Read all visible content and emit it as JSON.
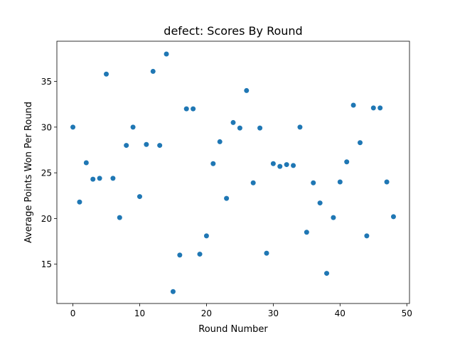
{
  "chart_data": {
    "type": "scatter",
    "title": "defect: Scores By Round",
    "xlabel": "Round Number",
    "ylabel": "Average Points Won Per Round",
    "xlim": [
      -2.4,
      50.4
    ],
    "ylim": [
      10.7,
      39.4
    ],
    "xticks": [
      0,
      10,
      20,
      30,
      40,
      50
    ],
    "yticks": [
      15,
      20,
      25,
      30,
      35
    ],
    "x_tick_labels": [
      "0",
      "10",
      "20",
      "30",
      "40",
      "50"
    ],
    "y_tick_labels": [
      "15",
      "20",
      "25",
      "30",
      "35"
    ],
    "grid": false,
    "color": "#1f77b4",
    "series": [
      {
        "x": [
          0,
          1,
          2,
          3,
          4,
          5,
          6,
          7,
          8,
          9,
          10,
          11,
          12,
          13,
          14,
          15,
          16,
          17,
          18,
          19,
          20,
          21,
          22,
          23,
          24,
          25,
          26,
          27,
          28,
          29,
          30,
          31,
          32,
          33,
          34,
          35,
          36,
          37,
          38,
          39,
          40,
          41,
          42,
          43,
          44,
          45,
          46,
          47,
          48
        ],
        "y": [
          30.0,
          21.8,
          26.1,
          24.3,
          24.4,
          35.8,
          24.4,
          20.1,
          28.0,
          30.0,
          22.4,
          28.1,
          36.1,
          28.0,
          38.0,
          12.0,
          16.0,
          32.0,
          32.0,
          16.1,
          18.1,
          26.0,
          28.4,
          22.2,
          30.5,
          29.9,
          34.0,
          23.9,
          29.9,
          16.2,
          26.0,
          25.7,
          25.9,
          25.8,
          30.0,
          18.5,
          23.9,
          21.7,
          14.0,
          20.1,
          24.0,
          26.2,
          32.4,
          28.3,
          18.1,
          32.1,
          32.1,
          24.0,
          20.2
        ]
      }
    ]
  }
}
